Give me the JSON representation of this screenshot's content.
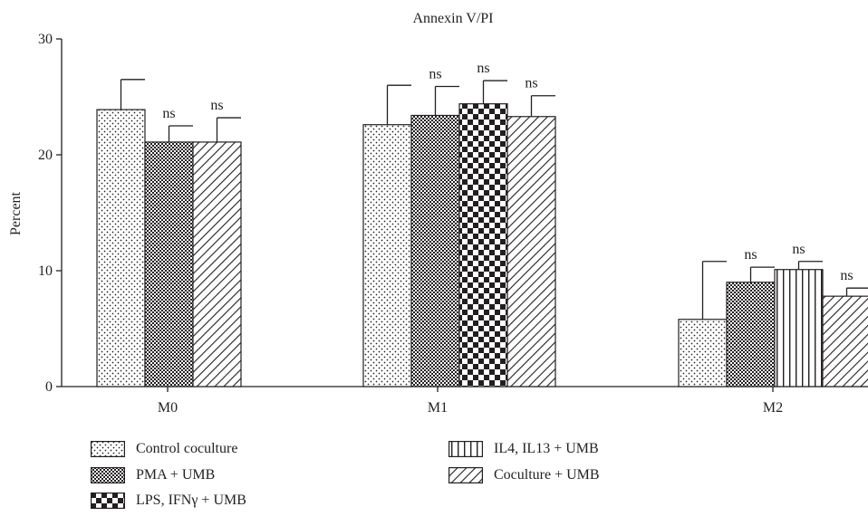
{
  "chart_data": {
    "type": "bar",
    "title": "Annexin V/PI",
    "xlabel": "",
    "ylabel": "Percent",
    "ylim": [
      0,
      30
    ],
    "yticks": [
      0,
      10,
      20,
      30
    ],
    "categories": [
      "M0",
      "M1",
      "M2"
    ],
    "grid": false,
    "legend_position": "bottom",
    "groups": [
      {
        "category": "M0",
        "bars": [
          {
            "series": "Control coculture",
            "value": 23.9,
            "error": 2.6,
            "annotation": ""
          },
          {
            "series": "PMA + UMB",
            "value": 21.1,
            "error": 1.4,
            "annotation": "ns"
          },
          {
            "series": "Coculture + UMB",
            "value": 21.1,
            "error": 2.1,
            "annotation": "ns"
          }
        ]
      },
      {
        "category": "M1",
        "bars": [
          {
            "series": "Control coculture",
            "value": 22.6,
            "error": 3.4,
            "annotation": ""
          },
          {
            "series": "PMA + UMB",
            "value": 23.4,
            "error": 2.5,
            "annotation": "ns"
          },
          {
            "series": "LPS, IFNγ + UMB",
            "value": 24.4,
            "error": 2.0,
            "annotation": "ns"
          },
          {
            "series": "Coculture + UMB",
            "value": 23.3,
            "error": 1.8,
            "annotation": "ns"
          }
        ]
      },
      {
        "category": "M2",
        "bars": [
          {
            "series": "Control coculture",
            "value": 5.8,
            "error": 5.0,
            "annotation": ""
          },
          {
            "series": "PMA + UMB",
            "value": 9.0,
            "error": 1.3,
            "annotation": "ns"
          },
          {
            "series": "IL4, IL13 + UMB",
            "value": 10.1,
            "error": 0.7,
            "annotation": "ns"
          },
          {
            "series": "Coculture + UMB",
            "value": 7.8,
            "error": 0.7,
            "annotation": "ns"
          }
        ]
      }
    ],
    "legend": [
      {
        "series": "Control coculture",
        "pattern": "dots"
      },
      {
        "series": "PMA + UMB",
        "pattern": "crosshatch"
      },
      {
        "series": "LPS, IFNγ + UMB",
        "pattern": "checker"
      },
      {
        "series": "IL4, IL13 + UMB",
        "pattern": "vlines"
      },
      {
        "series": "Coculture + UMB",
        "pattern": "diagonal"
      }
    ]
  }
}
